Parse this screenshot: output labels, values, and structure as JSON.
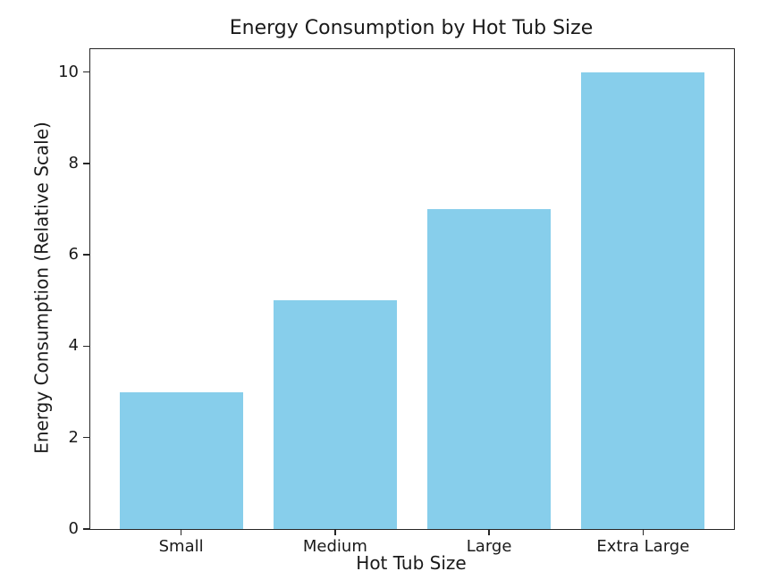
{
  "chart_data": {
    "type": "bar",
    "title": "Energy Consumption by Hot Tub Size",
    "xlabel": "Hot Tub Size",
    "ylabel": "Energy Consumption (Relative Scale)",
    "categories": [
      "Small",
      "Medium",
      "Large",
      "Extra Large"
    ],
    "values": [
      3,
      5,
      7,
      10
    ],
    "yticks": [
      0,
      2,
      4,
      6,
      8,
      10
    ],
    "ylim": [
      0,
      10.5
    ],
    "xlim": [
      -0.59,
      3.59
    ],
    "bar_width": 0.8,
    "bar_color": "#87CEEB",
    "axis_color": "#262626",
    "text_color": "#1a1a1a",
    "background_color": "#ffffff",
    "grid": false,
    "legend_position": "none"
  }
}
